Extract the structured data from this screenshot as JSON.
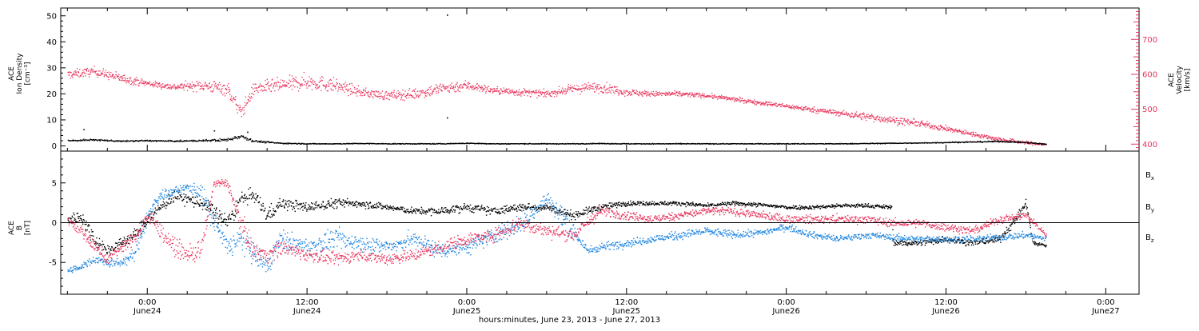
{
  "chart_data": [
    {
      "type": "scatter",
      "panel": "plasma",
      "left_axis": {
        "label_lines": [
          "ACE",
          "Ion Density",
          "[cm⁻³]"
        ],
        "ylim": [
          -2,
          53
        ],
        "ticks": [
          0,
          10,
          20,
          30,
          40,
          50
        ],
        "color": "#000000"
      },
      "right_axis": {
        "label_lines": [
          "ACE",
          "Velocity",
          "[km/s]"
        ],
        "ylim": [
          380,
          790
        ],
        "ticks": [
          400,
          500,
          600,
          700
        ],
        "color": "#e8355d"
      },
      "series": [
        {
          "name": "Velocity",
          "axis": "right",
          "color": "#e8355d",
          "x_hours": [
            -6,
            -4,
            -2,
            0,
            2,
            4,
            6,
            7,
            8,
            10,
            12,
            14,
            16,
            18,
            20,
            22,
            24,
            26,
            28,
            30,
            32,
            34,
            36,
            38,
            40,
            42,
            44,
            46,
            48,
            50,
            52,
            54,
            56,
            58,
            60,
            62,
            64,
            66,
            67.5
          ],
          "values": [
            600,
            610,
            590,
            575,
            565,
            570,
            560,
            490,
            560,
            570,
            580,
            570,
            550,
            540,
            545,
            560,
            570,
            555,
            550,
            545,
            560,
            565,
            550,
            545,
            545,
            540,
            530,
            520,
            510,
            500,
            490,
            480,
            470,
            460,
            445,
            430,
            415,
            405,
            400
          ],
          "scatter": [
            25,
            25,
            25,
            18,
            18,
            30,
            40,
            40,
            35,
            40,
            45,
            40,
            25,
            25,
            30,
            35,
            28,
            20,
            22,
            18,
            25,
            30,
            20,
            15,
            15,
            12,
            12,
            12,
            12,
            15,
            15,
            22,
            20,
            18,
            15,
            12,
            12,
            10,
            8
          ]
        },
        {
          "name": "Ion Density",
          "axis": "left",
          "color": "#000000",
          "x_hours": [
            -6,
            -4,
            -2,
            0,
            2,
            4,
            6,
            7,
            8,
            10,
            12,
            14,
            16,
            18,
            20,
            22,
            24,
            26,
            28,
            30,
            32,
            34,
            36,
            38,
            40,
            42,
            44,
            46,
            48,
            50,
            52,
            54,
            56,
            58,
            60,
            62,
            64,
            66,
            67.5
          ],
          "values": [
            2.2,
            2.5,
            2.0,
            2.2,
            2.0,
            2.2,
            2.5,
            4.0,
            2.0,
            1.2,
            1.0,
            1.0,
            1.1,
            1.0,
            1.0,
            1.0,
            1.2,
            1.0,
            1.0,
            1.0,
            1.0,
            1.1,
            1.0,
            1.0,
            1.0,
            1.0,
            1.0,
            1.0,
            1.0,
            1.0,
            1.0,
            1.1,
            1.2,
            1.3,
            1.5,
            1.7,
            1.9,
            1.5,
            0.8
          ],
          "scatter": [
            0.6,
            0.6,
            0.5,
            0.5,
            0.5,
            0.6,
            1.2,
            1.5,
            0.8,
            0.4,
            0.3,
            0.3,
            0.3,
            0.3,
            0.3,
            0.3,
            0.3,
            0.3,
            0.3,
            0.3,
            0.3,
            0.3,
            0.3,
            0.3,
            0.3,
            0.3,
            0.3,
            0.3,
            0.3,
            0.3,
            0.3,
            0.3,
            0.3,
            0.3,
            0.4,
            0.4,
            0.5,
            0.4,
            0.3
          ],
          "outliers": [
            [
              -4.8,
              6.5
            ],
            [
              5.0,
              6.0
            ],
            [
              7.5,
              5.5
            ],
            [
              22.5,
              50.5
            ],
            [
              22.5,
              11.0
            ]
          ]
        }
      ]
    },
    {
      "type": "scatter",
      "panel": "magnetic_field",
      "axis": {
        "label_lines": [
          "ACE",
          "B",
          "[nT]"
        ],
        "ylim": [
          -9,
          9
        ],
        "ticks": [
          -5,
          0,
          5
        ],
        "zero_line": true
      },
      "series": [
        {
          "name": "Bx",
          "color": "#000000",
          "x_hours": [
            -6,
            -5,
            -4,
            -3,
            -2,
            -1,
            0,
            1,
            2,
            3,
            4,
            5,
            6,
            7,
            8,
            9,
            10,
            12,
            14,
            16,
            18,
            20,
            22,
            24,
            26,
            28,
            30,
            32,
            34,
            36,
            38,
            40,
            42,
            44,
            46,
            48,
            50,
            52,
            54,
            55.9,
            56,
            58,
            60,
            62,
            64,
            65,
            66,
            66.5,
            67.5
          ],
          "values": [
            0.5,
            0.8,
            -2.0,
            -3.5,
            -2.5,
            -1.5,
            0.5,
            2.0,
            3.5,
            3.0,
            2.5,
            1.5,
            0.0,
            3.0,
            3.5,
            1.0,
            2.5,
            2.0,
            2.5,
            2.5,
            2.0,
            1.5,
            1.5,
            2.0,
            1.5,
            2.0,
            2.0,
            1.0,
            2.0,
            2.5,
            2.5,
            2.5,
            2.2,
            2.5,
            2.3,
            2.0,
            2.0,
            2.2,
            2.2,
            2.0,
            -2.5,
            -2.5,
            -2.0,
            -2.5,
            -2.0,
            0.0,
            2.5,
            -2.5,
            -2.8
          ],
          "scatter": [
            1.5,
            1.5,
            2.0,
            1.5,
            1.5,
            1.5,
            1.5,
            1.5,
            1.5,
            1.5,
            1.5,
            2.0,
            2.0,
            2.0,
            1.5,
            2.0,
            1.5,
            1.2,
            1.2,
            1.0,
            0.8,
            0.8,
            1.0,
            1.0,
            1.0,
            1.0,
            0.8,
            1.0,
            0.8,
            0.6,
            0.5,
            0.5,
            0.5,
            0.5,
            0.5,
            0.5,
            0.5,
            0.5,
            0.5,
            0.5,
            0.6,
            0.8,
            0.8,
            0.8,
            0.8,
            1.0,
            1.0,
            0.5,
            0.5
          ]
        },
        {
          "name": "By",
          "color": "#1f86e0",
          "x_hours": [
            -6,
            -5,
            -4,
            -3,
            -2,
            -1,
            0,
            1,
            2,
            3,
            4,
            5,
            6,
            7,
            8,
            9,
            10,
            12,
            14,
            16,
            18,
            20,
            22,
            24,
            26,
            28,
            30,
            32,
            33,
            34,
            36,
            38,
            40,
            42,
            44,
            46,
            48,
            50,
            52,
            54,
            56,
            58,
            60,
            62,
            64,
            66,
            67.5
          ],
          "values": [
            -6.0,
            -5.5,
            -4.5,
            -5.0,
            -5.0,
            -4.0,
            1.0,
            3.5,
            4.0,
            4.5,
            4.0,
            0.0,
            -3.0,
            -2.0,
            -4.0,
            -5.5,
            -2.0,
            -3.0,
            -2.0,
            -2.5,
            -3.0,
            -2.0,
            -3.5,
            -3.0,
            -1.5,
            0.0,
            3.0,
            -1.0,
            -3.5,
            -3.0,
            -2.5,
            -2.0,
            -1.5,
            -1.0,
            -1.5,
            -1.2,
            -0.5,
            -1.5,
            -2.0,
            -1.5,
            -1.8,
            -2.0,
            -2.0,
            -2.0,
            -1.8,
            -1.5,
            -2.0
          ],
          "scatter": [
            0.8,
            0.8,
            1.0,
            1.0,
            1.0,
            1.5,
            2.0,
            1.5,
            1.0,
            1.0,
            2.0,
            3.0,
            3.0,
            3.0,
            2.5,
            2.5,
            2.5,
            2.0,
            2.5,
            2.0,
            2.0,
            2.0,
            2.0,
            2.0,
            2.0,
            2.5,
            2.5,
            2.5,
            1.0,
            1.0,
            1.0,
            1.0,
            1.0,
            1.0,
            1.0,
            0.8,
            0.8,
            0.8,
            0.8,
            0.8,
            0.8,
            0.8,
            0.8,
            0.8,
            0.8,
            0.8,
            0.8
          ]
        },
        {
          "name": "Bz",
          "color": "#e8355d",
          "x_hours": [
            -6,
            -5,
            -4,
            -3,
            -2,
            -1,
            0,
            1,
            2,
            3,
            4,
            5,
            6,
            7,
            8,
            9,
            10,
            12,
            14,
            16,
            18,
            20,
            22,
            24,
            26,
            28,
            30,
            32,
            34,
            36,
            38,
            40,
            42,
            44,
            46,
            48,
            50,
            52,
            54,
            56,
            58,
            60,
            62,
            64,
            66,
            67.5
          ],
          "values": [
            0.5,
            -1.0,
            -3.0,
            -4.5,
            -3.0,
            -2.0,
            1.0,
            -1.0,
            -3.0,
            -4.0,
            -3.5,
            5.0,
            5.0,
            0.0,
            -3.5,
            -4.0,
            -3.0,
            -4.0,
            -4.5,
            -4.0,
            -4.5,
            -4.0,
            -3.0,
            -2.0,
            -1.5,
            0.0,
            -1.0,
            -1.5,
            1.5,
            1.0,
            0.5,
            1.0,
            1.5,
            1.5,
            1.0,
            0.5,
            0.5,
            0.5,
            0.5,
            0.0,
            0.0,
            -0.5,
            -1.0,
            0.5,
            1.0,
            -1.5
          ],
          "scatter": [
            1.5,
            1.5,
            1.5,
            1.5,
            1.5,
            1.5,
            2.0,
            2.0,
            2.0,
            2.0,
            2.5,
            1.0,
            1.0,
            2.5,
            2.0,
            2.0,
            2.0,
            1.5,
            1.5,
            1.5,
            1.5,
            1.5,
            1.5,
            1.5,
            1.5,
            2.0,
            1.5,
            1.5,
            1.5,
            1.0,
            1.0,
            1.0,
            1.0,
            1.0,
            1.0,
            1.0,
            1.0,
            1.0,
            1.0,
            1.0,
            1.0,
            1.0,
            1.0,
            1.0,
            0.8,
            0.5
          ]
        }
      ]
    }
  ],
  "x_axis": {
    "xlim_hours": [
      -6.5,
      74.5
    ],
    "major_ticks": [
      {
        "hour": 0,
        "time": "0:00",
        "date": "June24"
      },
      {
        "hour": 12,
        "time": "12:00",
        "date": "June24"
      },
      {
        "hour": 24,
        "time": "0:00",
        "date": "June25"
      },
      {
        "hour": 36,
        "time": "12:00",
        "date": "June25"
      },
      {
        "hour": 48,
        "time": "0:00",
        "date": "June26"
      },
      {
        "hour": 60,
        "time": "12:00",
        "date": "June26"
      },
      {
        "hour": 72,
        "time": "0:00",
        "date": "June27"
      }
    ],
    "minor_step_hours": 3,
    "label": "hours:minutes, June 23, 2013 - June 27, 2013"
  },
  "legend": {
    "placement": "right",
    "items": [
      {
        "symbol": "B",
        "sub": "x",
        "color": "#000000"
      },
      {
        "symbol": "B",
        "sub": "y",
        "color": "#1f86e0"
      },
      {
        "symbol": "B",
        "sub": "z",
        "color": "#e8355d"
      }
    ]
  }
}
